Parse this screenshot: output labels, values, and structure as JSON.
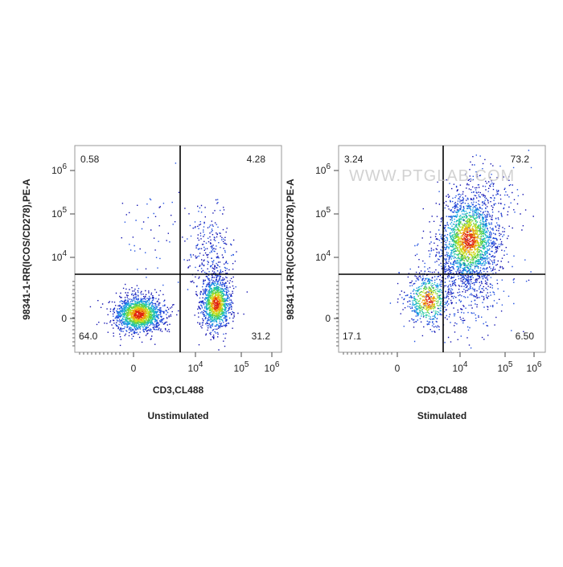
{
  "panels": [
    {
      "caption": "Unstimulated",
      "x_label": "CD3,CL488",
      "y_label": "98341-1-RR(ICOS/CD278),PE-A",
      "quadrants": {
        "upper_left": "0.58",
        "upper_right": "4.28",
        "lower_left": "64.0",
        "lower_right": "31.2"
      },
      "x_ticks": [
        {
          "base": "0"
        },
        {
          "base": "10",
          "exp": "4"
        },
        {
          "base": "10",
          "exp": "5"
        },
        {
          "base": "10",
          "exp": "6"
        }
      ],
      "y_ticks": [
        {
          "base": "10",
          "exp": "6"
        },
        {
          "base": "10",
          "exp": "5"
        },
        {
          "base": "10",
          "exp": "4"
        },
        {
          "base": "0"
        }
      ]
    },
    {
      "caption": "Stimulated",
      "x_label": "CD3,CL488",
      "y_label": "98341-1-RR(ICOS/CD278),PE-A",
      "quadrants": {
        "upper_left": "3.24",
        "upper_right": "73.2",
        "lower_left": "17.1",
        "lower_right": "6.50"
      },
      "x_ticks": [
        {
          "base": "0"
        },
        {
          "base": "10",
          "exp": "4"
        },
        {
          "base": "10",
          "exp": "5"
        },
        {
          "base": "10",
          "exp": "6"
        }
      ],
      "y_ticks": [
        {
          "base": "10",
          "exp": "6"
        },
        {
          "base": "10",
          "exp": "5"
        },
        {
          "base": "10",
          "exp": "4"
        },
        {
          "base": "0"
        }
      ],
      "watermark": "WWW.PTGLAB.COM"
    }
  ]
}
